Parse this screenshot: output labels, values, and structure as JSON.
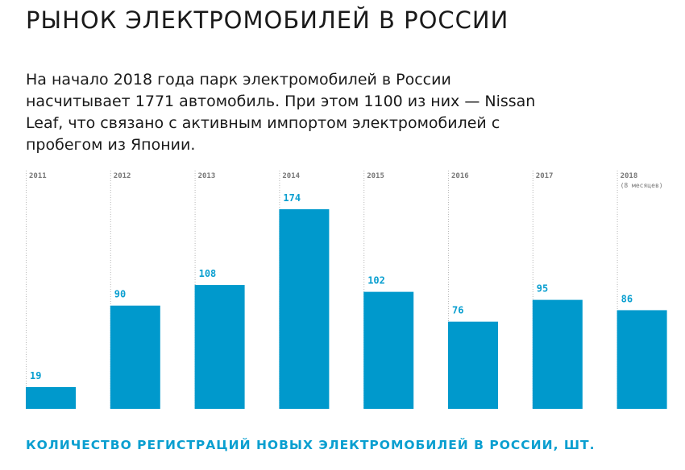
{
  "title": "РЫНОК ЭЛЕКТРОМОБИЛЕЙ В РОССИИ",
  "intro": "На начало 2018 года парк электромобилей в России насчитывает 1771 автомобиль. При этом 1100 из них — Nissan Leaf, что связано с активным импортом электромобилей с пробегом из Японии.",
  "caption": "КОЛИЧЕСТВО РЕГИСТРАЦИЙ НОВЫХ ЭЛЕКТРОМОБИЛЕЙ В РОССИИ, ШТ.",
  "colors": {
    "bar": "#0099cc",
    "value_label": "#0a9fd0",
    "caption": "#0a9fd0"
  },
  "chart_data": {
    "type": "bar",
    "categories": [
      "2011",
      "2012",
      "2013",
      "2014",
      "2015",
      "2016",
      "2017",
      "2018"
    ],
    "category_notes": [
      "",
      "",
      "",
      "",
      "",
      "",
      "",
      "(8 месяцев)"
    ],
    "values": [
      19,
      90,
      108,
      174,
      102,
      76,
      95,
      86
    ],
    "ylim": [
      0,
      174
    ],
    "grid": false,
    "xlabel": "",
    "ylabel": ""
  }
}
